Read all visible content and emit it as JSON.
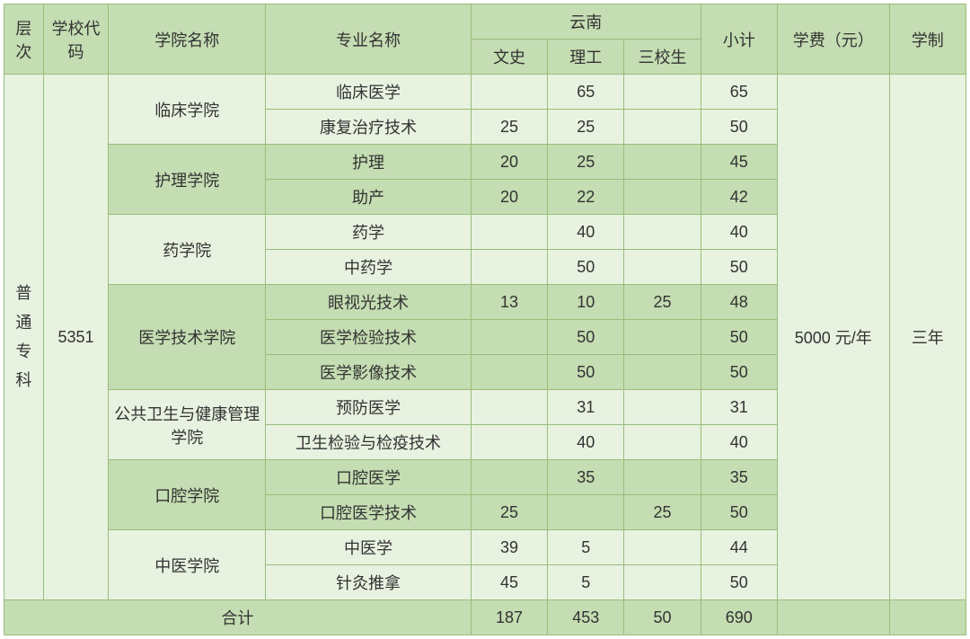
{
  "headers": {
    "level": "层次",
    "code": "学校代码",
    "school": "学院名称",
    "major": "专业名称",
    "region": "云南",
    "sub1": "文史",
    "sub2": "理工",
    "sub3": "三校生",
    "subtotal": "小计",
    "fee": "学费（元）",
    "duration": "学制"
  },
  "body": {
    "level": "普通专科",
    "code": "5351",
    "fee": "5000 元/年",
    "duration": "三年"
  },
  "schools": [
    {
      "name": "临床学院",
      "class": "odd-dept",
      "majors": [
        {
          "name": "临床医学",
          "a": "",
          "b": "65",
          "c": "",
          "t": "65"
        },
        {
          "name": "康复治疗技术",
          "a": "25",
          "b": "25",
          "c": "",
          "t": "50"
        }
      ]
    },
    {
      "name": "护理学院",
      "class": "even-dept",
      "majors": [
        {
          "name": "护理",
          "a": "20",
          "b": "25",
          "c": "",
          "t": "45"
        },
        {
          "name": "助产",
          "a": "20",
          "b": "22",
          "c": "",
          "t": "42"
        }
      ]
    },
    {
      "name": "药学院",
      "class": "odd-dept",
      "majors": [
        {
          "name": "药学",
          "a": "",
          "b": "40",
          "c": "",
          "t": "40"
        },
        {
          "name": "中药学",
          "a": "",
          "b": "50",
          "c": "",
          "t": "50"
        }
      ]
    },
    {
      "name": "医学技术学院",
      "class": "even-dept",
      "majors": [
        {
          "name": "眼视光技术",
          "a": "13",
          "b": "10",
          "c": "25",
          "t": "48"
        },
        {
          "name": "医学检验技术",
          "a": "",
          "b": "50",
          "c": "",
          "t": "50"
        },
        {
          "name": "医学影像技术",
          "a": "",
          "b": "50",
          "c": "",
          "t": "50"
        }
      ]
    },
    {
      "name": "公共卫生与健康管理学院",
      "class": "odd-dept",
      "majors": [
        {
          "name": "预防医学",
          "a": "",
          "b": "31",
          "c": "",
          "t": "31"
        },
        {
          "name": "卫生检验与检疫技术",
          "a": "",
          "b": "40",
          "c": "",
          "t": "40"
        }
      ]
    },
    {
      "name": "口腔学院",
      "class": "even-dept",
      "majors": [
        {
          "name": "口腔医学",
          "a": "",
          "b": "35",
          "c": "",
          "t": "35"
        },
        {
          "name": "口腔医学技术",
          "a": "25",
          "b": "",
          "c": "25",
          "t": "50"
        }
      ]
    },
    {
      "name": "中医学院",
      "class": "odd-dept",
      "majors": [
        {
          "name": "中医学",
          "a": "39",
          "b": "5",
          "c": "",
          "t": "44"
        },
        {
          "name": "针灸推拿",
          "a": "45",
          "b": "5",
          "c": "",
          "t": "50"
        }
      ]
    }
  ],
  "total": {
    "label": "合计",
    "a": "187",
    "b": "453",
    "c": "50",
    "t": "690"
  },
  "colors": {
    "border": "#98bd7b",
    "header_bg": "#c4ddb2",
    "odd_bg": "#e8f2e0",
    "even_bg": "#c4ddb2",
    "text": "#333333"
  }
}
